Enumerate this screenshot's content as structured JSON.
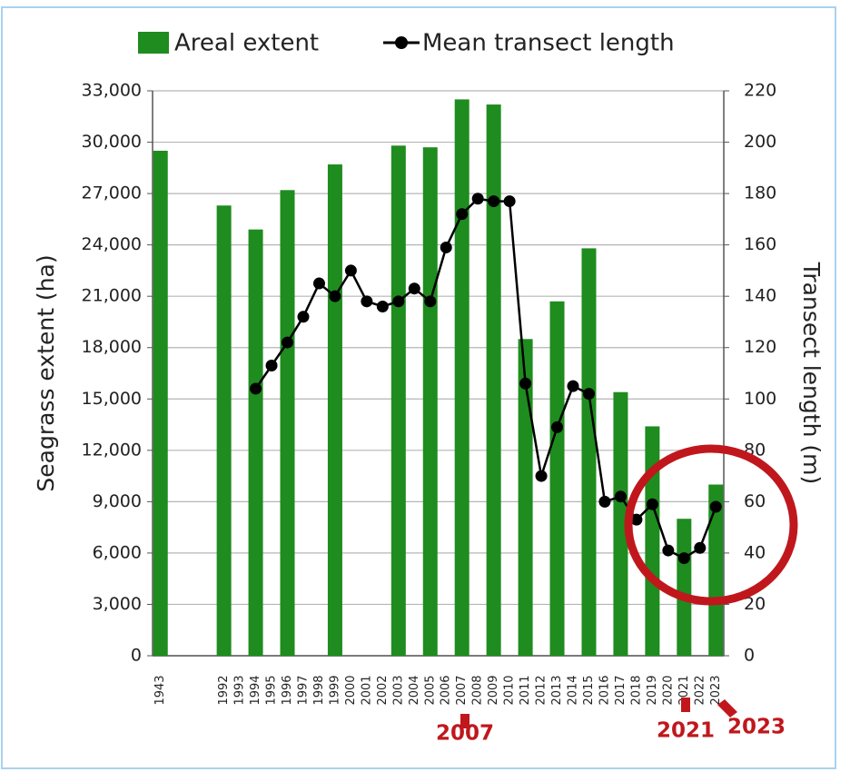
{
  "chart_data": {
    "type": "bar_line",
    "categories": [
      "1943",
      null,
      null,
      null,
      "1992",
      "1993",
      "1994",
      "1995",
      "1996",
      "1997",
      "1998",
      "1999",
      "2000",
      "2001",
      "2002",
      "2003",
      "2004",
      "2005",
      "2006",
      "2007",
      "2008",
      "2009",
      "2010",
      "2011",
      "2012",
      "2013",
      "2014",
      "2015",
      "2016",
      "2017",
      "2018",
      "2019",
      "2020",
      "2021",
      "2022",
      "2023"
    ],
    "series": [
      {
        "name": "Areal extent",
        "color": "#1e8c1e",
        "type": "bar",
        "values": [
          29500,
          null,
          null,
          null,
          26300,
          null,
          24900,
          null,
          27200,
          null,
          null,
          28700,
          null,
          null,
          null,
          29800,
          null,
          29700,
          null,
          32500,
          null,
          32200,
          null,
          18500,
          null,
          20700,
          null,
          23800,
          null,
          15400,
          null,
          13400,
          null,
          8000,
          null,
          10000
        ]
      },
      {
        "name": "Mean transect length",
        "color": "#000000",
        "type": "line",
        "axis": "y2",
        "values": [
          null,
          null,
          null,
          null,
          null,
          null,
          104,
          113,
          122,
          132,
          145,
          140,
          150,
          138,
          136,
          138,
          143,
          138,
          159,
          172,
          178,
          177,
          177,
          106,
          70,
          89,
          105,
          102,
          60,
          62,
          53,
          59,
          41,
          38,
          42,
          58
        ]
      }
    ],
    "ylabel": "Seagrass extent (ha)",
    "y2label": "Transect length (m)",
    "ylim": [
      0,
      33000
    ],
    "yticks": [
      0,
      {
        "value": 3000,
        "label": "3,000"
      },
      {
        "value": 6000,
        "label": "6,000"
      },
      {
        "value": 9000,
        "label": "9,000"
      },
      {
        "value": 12000,
        "label": "12,000"
      },
      {
        "value": 15000,
        "label": "15,000"
      },
      {
        "value": 18000,
        "label": "18,000"
      },
      {
        "value": 21000,
        "label": "21,000"
      },
      {
        "value": 24000,
        "label": "24,000"
      },
      {
        "value": 27000,
        "label": "27,000"
      },
      {
        "value": 30000,
        "label": "30,000"
      },
      {
        "value": 33000,
        "label": "33,000"
      }
    ],
    "y2lim": [
      0,
      220
    ],
    "y2ticks": [
      0,
      20,
      40,
      60,
      80,
      100,
      120,
      140,
      160,
      180,
      200,
      220
    ],
    "grid": true,
    "legend": "top",
    "annotations": [
      "2007",
      "2021",
      "2023"
    ]
  }
}
